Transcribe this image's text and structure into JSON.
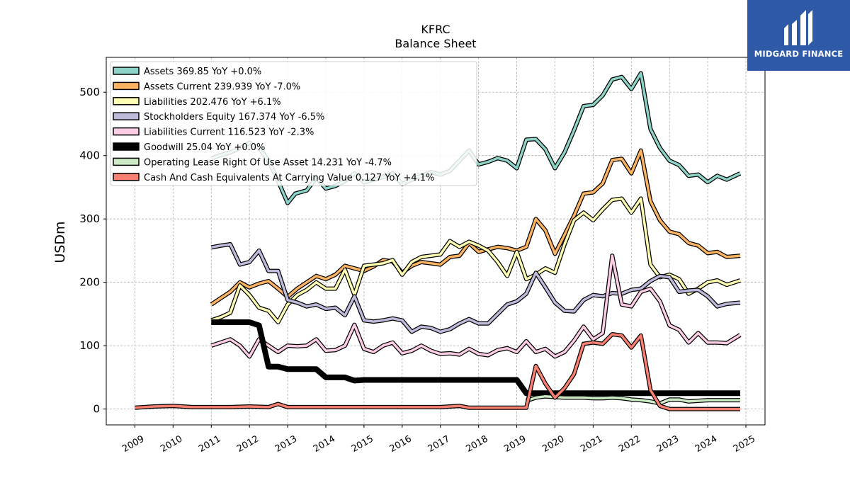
{
  "logo": {
    "text": "MIDGARD FINANCE"
  },
  "chart_data": {
    "type": "line",
    "title": "KFRC",
    "subtitle": "Balance  Sheet",
    "ylabel": "USDm",
    "xlabel": "",
    "ylim": [
      -25,
      555
    ],
    "xlim": [
      2008.25,
      2025.5
    ],
    "yticks": [
      0,
      100,
      200,
      300,
      400,
      500
    ],
    "xticks": [
      "2009",
      "2010",
      "2011",
      "2012",
      "2013",
      "2014",
      "2015",
      "2016",
      "2017",
      "2018",
      "2019",
      "2020",
      "2021",
      "2022",
      "2023",
      "2024",
      "2025"
    ],
    "grid": true,
    "legend_position": "top-left",
    "series": [
      {
        "name": "Assets",
        "legend": "Assets  369.85 YoY +0.0%",
        "color": "#8dd3c7",
        "x": [
          2011.0,
          2011.2,
          2011.5,
          2011.75,
          2012.0,
          2012.25,
          2012.5,
          2012.75,
          2013.0,
          2013.2,
          2013.5,
          2013.75,
          2014.0,
          2014.25,
          2014.5,
          2014.75,
          2015.0,
          2015.25,
          2015.5,
          2015.75,
          2016.0,
          2016.25,
          2016.5,
          2016.75,
          2017.0,
          2017.25,
          2017.5,
          2017.75,
          2018.0,
          2018.25,
          2018.5,
          2018.75,
          2019.0,
          2019.25,
          2019.5,
          2019.75,
          2020.0,
          2020.25,
          2020.5,
          2020.75,
          2021.0,
          2021.25,
          2021.5,
          2021.75,
          2022.0,
          2022.25,
          2022.5,
          2022.75,
          2023.0,
          2023.25,
          2023.5,
          2023.75,
          2024.0,
          2024.25,
          2024.5,
          2024.85
        ],
        "y": [
          395,
          400,
          405,
          412,
          420,
          412,
          392,
          360,
          325,
          340,
          345,
          365,
          348,
          352,
          360,
          372,
          358,
          362,
          366,
          372,
          355,
          362,
          368,
          374,
          370,
          376,
          392,
          408,
          386,
          390,
          396,
          392,
          380,
          425,
          426,
          410,
          380,
          405,
          440,
          478,
          480,
          495,
          520,
          524,
          505,
          530,
          442,
          412,
          392,
          385,
          368,
          370,
          358,
          368,
          362,
          372
        ]
      },
      {
        "name": "Assets Current",
        "legend": "Assets Current  239.939 YoY -7.0%",
        "color": "#fdb462",
        "x": [
          2011.0,
          2011.25,
          2011.5,
          2011.75,
          2012.0,
          2012.25,
          2012.5,
          2012.75,
          2013.0,
          2013.25,
          2013.5,
          2013.75,
          2014.0,
          2014.25,
          2014.5,
          2014.75,
          2015.0,
          2015.25,
          2015.5,
          2015.75,
          2016.0,
          2016.25,
          2016.5,
          2016.75,
          2017.0,
          2017.25,
          2017.5,
          2017.75,
          2018.0,
          2018.25,
          2018.5,
          2018.75,
          2019.0,
          2019.25,
          2019.5,
          2019.75,
          2020.0,
          2020.25,
          2020.5,
          2020.75,
          2021.0,
          2021.25,
          2021.5,
          2021.75,
          2022.0,
          2022.25,
          2022.5,
          2022.75,
          2023.0,
          2023.25,
          2023.5,
          2023.75,
          2024.0,
          2024.25,
          2024.5,
          2024.85
        ],
        "y": [
          165,
          175,
          185,
          200,
          192,
          198,
          202,
          190,
          177,
          190,
          200,
          210,
          205,
          212,
          226,
          222,
          218,
          225,
          235,
          233,
          215,
          226,
          232,
          230,
          228,
          240,
          242,
          262,
          248,
          252,
          256,
          254,
          250,
          256,
          300,
          282,
          245,
          275,
          305,
          340,
          342,
          356,
          393,
          395,
          372,
          408,
          328,
          298,
          280,
          276,
          262,
          258,
          246,
          248,
          240,
          242
        ]
      },
      {
        "name": "Liabilities",
        "legend": "Liabilities  202.476 YoY +6.1%",
        "color": "#ffffb3",
        "x": [
          2011.0,
          2011.25,
          2011.5,
          2011.75,
          2012.0,
          2012.25,
          2012.5,
          2012.75,
          2013.0,
          2013.25,
          2013.5,
          2013.75,
          2014.0,
          2014.25,
          2014.5,
          2014.75,
          2015.0,
          2015.25,
          2015.5,
          2015.75,
          2016.0,
          2016.25,
          2016.5,
          2016.75,
          2017.0,
          2017.25,
          2017.5,
          2017.75,
          2018.0,
          2018.25,
          2018.5,
          2018.75,
          2019.0,
          2019.25,
          2019.5,
          2019.75,
          2020.0,
          2020.25,
          2020.5,
          2020.75,
          2021.0,
          2021.25,
          2021.5,
          2021.75,
          2022.0,
          2022.25,
          2022.5,
          2022.75,
          2023.0,
          2023.25,
          2023.5,
          2023.75,
          2024.0,
          2024.25,
          2024.5,
          2024.85
        ],
        "y": [
          140,
          145,
          152,
          195,
          180,
          160,
          155,
          137,
          165,
          180,
          188,
          200,
          190,
          190,
          220,
          180,
          226,
          228,
          230,
          235,
          212,
          232,
          240,
          242,
          244,
          265,
          256,
          264,
          258,
          250,
          232,
          210,
          248,
          205,
          212,
          222,
          215,
          260,
          298,
          310,
          298,
          315,
          330,
          332,
          310,
          332,
          228,
          208,
          212,
          205,
          182,
          190,
          200,
          203,
          196,
          203
        ]
      },
      {
        "name": "Stockholders Equity",
        "legend": "Stockholders Equity  167.374 YoY -6.5%",
        "color": "#bebada",
        "x": [
          2011.0,
          2011.25,
          2011.5,
          2011.75,
          2012.0,
          2012.25,
          2012.5,
          2012.75,
          2013.0,
          2013.25,
          2013.5,
          2013.75,
          2014.0,
          2014.25,
          2014.5,
          2014.75,
          2015.0,
          2015.25,
          2015.5,
          2015.75,
          2016.0,
          2016.25,
          2016.5,
          2016.75,
          2017.0,
          2017.25,
          2017.5,
          2017.75,
          2018.0,
          2018.25,
          2018.5,
          2018.75,
          2019.0,
          2019.25,
          2019.5,
          2019.75,
          2020.0,
          2020.25,
          2020.5,
          2020.75,
          2021.0,
          2021.25,
          2021.5,
          2021.75,
          2022.0,
          2022.25,
          2022.5,
          2022.75,
          2023.0,
          2023.25,
          2023.5,
          2023.75,
          2024.0,
          2024.25,
          2024.5,
          2024.85
        ],
        "y": [
          255,
          258,
          260,
          228,
          232,
          250,
          218,
          218,
          172,
          168,
          162,
          165,
          158,
          160,
          148,
          178,
          140,
          138,
          140,
          143,
          140,
          122,
          130,
          128,
          122,
          126,
          135,
          142,
          135,
          135,
          150,
          165,
          170,
          182,
          215,
          192,
          168,
          155,
          154,
          172,
          180,
          178,
          183,
          182,
          188,
          190,
          202,
          210,
          208,
          185,
          187,
          188,
          178,
          162,
          166,
          168
        ]
      },
      {
        "name": "Liabilities Current",
        "legend": "Liabilities Current  116.523 YoY -2.3%",
        "color": "#fccde5",
        "x": [
          2011.0,
          2011.25,
          2011.5,
          2011.75,
          2012.0,
          2012.25,
          2012.5,
          2012.75,
          2013.0,
          2013.25,
          2013.5,
          2013.75,
          2014.0,
          2014.25,
          2014.5,
          2014.75,
          2015.0,
          2015.25,
          2015.5,
          2015.75,
          2016.0,
          2016.25,
          2016.5,
          2016.75,
          2017.0,
          2017.25,
          2017.5,
          2017.75,
          2018.0,
          2018.25,
          2018.5,
          2018.75,
          2019.0,
          2019.25,
          2019.5,
          2019.75,
          2020.0,
          2020.25,
          2020.5,
          2020.75,
          2021.0,
          2021.25,
          2021.5,
          2021.75,
          2022.0,
          2022.25,
          2022.5,
          2022.75,
          2023.0,
          2023.25,
          2023.5,
          2023.75,
          2024.0,
          2024.25,
          2024.5,
          2024.85
        ],
        "y": [
          100,
          105,
          110,
          100,
          83,
          110,
          100,
          90,
          100,
          99,
          100,
          110,
          92,
          93,
          100,
          133,
          95,
          90,
          100,
          105,
          88,
          92,
          100,
          92,
          87,
          88,
          86,
          95,
          87,
          85,
          93,
          96,
          90,
          107,
          90,
          95,
          83,
          90,
          108,
          130,
          110,
          120,
          242,
          165,
          162,
          185,
          190,
          170,
          132,
          125,
          105,
          120,
          105,
          105,
          104,
          117
        ]
      },
      {
        "name": "Goodwill",
        "legend": "Goodwill  25.04 YoY +0.0%",
        "color": "#000000",
        "x": [
          2011.0,
          2012.0,
          2012.25,
          2012.5,
          2012.75,
          2013.0,
          2013.75,
          2014.0,
          2014.5,
          2014.75,
          2015.0,
          2015.5,
          2016.0,
          2016.5,
          2017.0,
          2017.5,
          2018.0,
          2018.5,
          2019.0,
          2019.25,
          2019.5,
          2020.0,
          2020.5,
          2021.0,
          2021.5,
          2022.0,
          2022.5,
          2023.0,
          2023.5,
          2024.0,
          2024.5,
          2024.85
        ],
        "y": [
          137,
          137,
          132,
          67,
          67,
          63,
          63,
          50,
          50,
          45,
          46,
          46,
          46,
          46,
          46,
          46,
          46,
          46,
          46,
          25,
          25,
          25,
          25,
          25,
          25,
          25,
          25,
          25,
          25,
          25,
          25,
          25
        ]
      },
      {
        "name": "Operating Lease Right Of Use Asset",
        "legend": "Operating Lease Right Of Use Asset  14.231 YoY -4.7%",
        "color": "#ccebc5",
        "x": [
          2019.25,
          2019.5,
          2019.75,
          2020.0,
          2020.25,
          2020.5,
          2020.75,
          2021.0,
          2021.25,
          2021.5,
          2021.75,
          2022.0,
          2022.25,
          2022.5,
          2022.75,
          2023.0,
          2023.25,
          2023.5,
          2023.75,
          2024.0,
          2024.25,
          2024.5,
          2024.85
        ],
        "y": [
          13,
          18,
          20,
          19,
          18,
          18,
          18,
          17,
          17,
          18,
          17,
          15,
          14,
          12,
          9,
          15,
          15,
          12,
          13,
          14,
          14,
          14,
          14
        ]
      },
      {
        "name": "Cash And Cash Equivalents At Carrying Value",
        "legend": "Cash And Cash Equivalents At Carrying Value  0.127 YoY +4.1%",
        "color": "#fb8072",
        "x": [
          2009.0,
          2009.5,
          2010.0,
          2010.5,
          2011.0,
          2011.5,
          2012.0,
          2012.5,
          2012.75,
          2013.0,
          2013.5,
          2014.0,
          2014.5,
          2015.0,
          2015.5,
          2016.0,
          2016.5,
          2017.0,
          2017.25,
          2017.5,
          2017.75,
          2018.0,
          2018.5,
          2019.0,
          2019.25,
          2019.5,
          2019.75,
          2020.0,
          2020.25,
          2020.5,
          2020.75,
          2021.0,
          2021.25,
          2021.5,
          2021.75,
          2022.0,
          2022.25,
          2022.5,
          2022.75,
          2023.0,
          2023.5,
          2024.0,
          2024.5,
          2024.85
        ],
        "y": [
          2,
          4,
          5,
          3,
          3,
          3,
          4,
          3,
          8,
          3,
          3,
          3,
          3,
          3,
          3,
          3,
          3,
          3,
          4,
          5,
          2,
          2,
          2,
          2,
          2,
          68,
          40,
          18,
          33,
          55,
          103,
          105,
          103,
          118,
          116,
          97,
          116,
          30,
          5,
          0,
          0,
          0,
          0,
          0
        ]
      }
    ]
  }
}
